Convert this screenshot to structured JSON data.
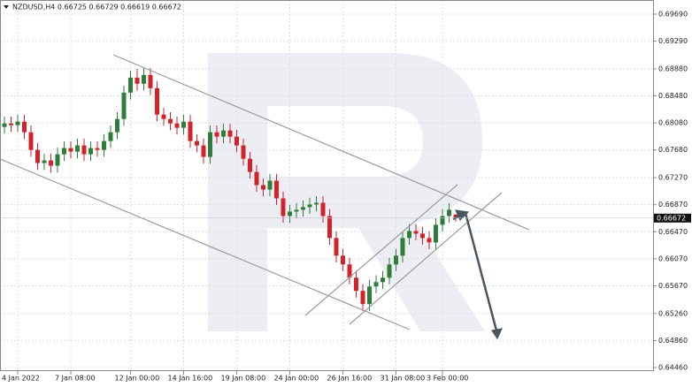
{
  "chart_data": {
    "type": "candlestick",
    "title": "NZDUSD,H4  0.66725 0.66729 0.66619 0.66672",
    "categories": [
      null,
      null,
      "4 Jan 2022",
      null,
      null,
      null,
      null,
      null,
      null,
      null,
      "7 Jan 08:00",
      null,
      null,
      null,
      null,
      null,
      null,
      null,
      null,
      "12 Jan 00:00",
      null,
      null,
      null,
      null,
      null,
      null,
      null,
      "14 Jan 16:00",
      null,
      null,
      null,
      null,
      null,
      null,
      null,
      "19 Jan 08:00",
      null,
      null,
      null,
      null,
      null,
      null,
      null,
      "24 Jan 00:00",
      null,
      null,
      null,
      null,
      null,
      null,
      null,
      "26 Jan 16:00",
      null,
      null,
      null,
      null,
      null,
      null,
      null,
      "31 Jan 08:00",
      null,
      null,
      null,
      null,
      null,
      null,
      "3 Feb 00:00",
      null,
      null
    ],
    "open": [
      0.6802,
      0.68073,
      0.68047,
      0.68099,
      0.67942,
      0.67681,
      0.67486,
      0.67525,
      0.67447,
      0.67616,
      0.67708,
      0.67655,
      0.67747,
      0.67616,
      0.67708,
      0.67681,
      0.67812,
      0.67942,
      0.68138,
      0.68529,
      0.68751,
      0.6866,
      0.6879,
      0.68594,
      0.68203,
      0.68138,
      0.68073,
      0.68008,
      0.68099,
      0.67812,
      0.67747,
      0.67577,
      0.67942,
      0.67877,
      0.67968,
      0.67877,
      0.67747,
      0.67551,
      0.67355,
      0.6716,
      0.67094,
      0.67225,
      0.66964,
      0.66703,
      0.66768,
      0.66795,
      0.66834,
      0.66873,
      0.66899,
      0.66703,
      0.66377,
      0.66116,
      0.65986,
      0.6579,
      0.65595,
      0.65399,
      0.6566,
      0.65725,
      0.6579,
      0.65986,
      0.66116,
      0.66377,
      0.66481,
      0.66442,
      0.66377,
      0.66312,
      0.66573,
      0.66703,
      0.66725
    ],
    "high": [
      0.68173,
      0.68173,
      0.68199,
      0.68199,
      0.68042,
      0.67781,
      0.67625,
      0.67625,
      0.67716,
      0.67808,
      0.67808,
      0.67847,
      0.67847,
      0.67808,
      0.67808,
      0.67912,
      0.68042,
      0.68238,
      0.68629,
      0.68851,
      0.6888,
      0.6889,
      0.6889,
      0.68694,
      0.68303,
      0.68238,
      0.68173,
      0.68199,
      0.68199,
      0.67912,
      0.67847,
      0.68042,
      0.68042,
      0.68068,
      0.68068,
      0.67977,
      0.67847,
      0.67651,
      0.67455,
      0.6726,
      0.67325,
      0.67325,
      0.67064,
      0.66868,
      0.66895,
      0.66934,
      0.66973,
      0.66999,
      0.66999,
      0.66803,
      0.66477,
      0.66216,
      0.66086,
      0.6589,
      0.65695,
      0.6576,
      0.65825,
      0.6589,
      0.66086,
      0.66216,
      0.66477,
      0.66581,
      0.66581,
      0.66542,
      0.66477,
      0.66673,
      0.66803,
      0.66895,
      0.66729
    ],
    "low": [
      0.6792,
      0.67947,
      0.67947,
      0.67842,
      0.67581,
      0.67386,
      0.67386,
      0.67347,
      0.67347,
      0.67516,
      0.67555,
      0.67555,
      0.67516,
      0.67516,
      0.67581,
      0.67581,
      0.67712,
      0.67842,
      0.68038,
      0.68429,
      0.6856,
      0.6856,
      0.68494,
      0.68103,
      0.68038,
      0.67973,
      0.67908,
      0.67908,
      0.67712,
      0.67647,
      0.67477,
      0.67477,
      0.67777,
      0.67777,
      0.67777,
      0.67647,
      0.67451,
      0.67255,
      0.6706,
      0.66994,
      0.66994,
      0.66864,
      0.66603,
      0.66603,
      0.66668,
      0.66695,
      0.66734,
      0.66773,
      0.66603,
      0.66277,
      0.66016,
      0.65886,
      0.6569,
      0.65495,
      0.65299,
      0.65299,
      0.6556,
      0.65625,
      0.6569,
      0.65886,
      0.66016,
      0.66277,
      0.66342,
      0.66277,
      0.66212,
      0.66212,
      0.66473,
      0.66603,
      0.66619
    ],
    "close": [
      0.68073,
      0.68047,
      0.68099,
      0.67942,
      0.67681,
      0.67486,
      0.67525,
      0.67447,
      0.67616,
      0.67708,
      0.67655,
      0.67747,
      0.67616,
      0.67708,
      0.67681,
      0.67812,
      0.67942,
      0.68138,
      0.68529,
      0.68751,
      0.6866,
      0.6879,
      0.68594,
      0.68203,
      0.68138,
      0.68073,
      0.68008,
      0.68099,
      0.67812,
      0.67747,
      0.67577,
      0.67942,
      0.67877,
      0.67968,
      0.67877,
      0.67747,
      0.67551,
      0.67355,
      0.6716,
      0.67094,
      0.67225,
      0.66964,
      0.66703,
      0.66768,
      0.66795,
      0.66834,
      0.66873,
      0.66899,
      0.66703,
      0.66377,
      0.66116,
      0.65986,
      0.6579,
      0.65595,
      0.65399,
      0.6566,
      0.65725,
      0.6579,
      0.65986,
      0.66116,
      0.66377,
      0.66481,
      0.66442,
      0.66377,
      0.66312,
      0.66573,
      0.66703,
      0.66795,
      0.66672
    ],
    "up_color": "#2f7d3a",
    "down_color": "#d2232a",
    "ylim": [
      0.6446,
      0.6969
    ],
    "yticks": [
      {
        "value": 0.6969,
        "label": "0.69690"
      },
      {
        "value": 0.6929,
        "label": "0.69290"
      },
      {
        "value": 0.6888,
        "label": "0.68880"
      },
      {
        "value": 0.6848,
        "label": "0.68480"
      },
      {
        "value": 0.6808,
        "label": "0.68080"
      },
      {
        "value": 0.6768,
        "label": "0.67680"
      },
      {
        "value": 0.6727,
        "label": "0.67270"
      },
      {
        "value": 0.6687,
        "label": "0.66870"
      },
      {
        "value": 0.6647,
        "label": "0.66470"
      },
      {
        "value": 0.6607,
        "label": "0.66070"
      },
      {
        "value": 0.6567,
        "label": "0.65670"
      },
      {
        "value": 0.6526,
        "label": "0.65260"
      },
      {
        "value": 0.6486,
        "label": "0.64860"
      },
      {
        "value": 0.6446,
        "label": "0.64460"
      }
    ],
    "last_price": {
      "value": 0.66672,
      "label": "0.66672"
    },
    "grid": true
  }
}
